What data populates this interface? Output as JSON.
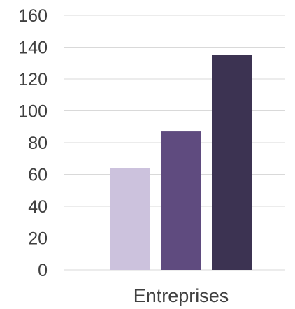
{
  "chart_data": {
    "type": "bar",
    "categories": [
      "Entreprises"
    ],
    "series": [
      {
        "values": [
          64
        ],
        "color": "#ccc2dd"
      },
      {
        "values": [
          87
        ],
        "color": "#5f4b7f"
      },
      {
        "values": [
          135
        ],
        "color": "#3c3352"
      }
    ],
    "ylim": [
      0,
      160
    ],
    "yticks": [
      "0",
      "20",
      "40",
      "60",
      "80",
      "100",
      "120",
      "140",
      "160"
    ],
    "grid": true,
    "legend": "none"
  }
}
